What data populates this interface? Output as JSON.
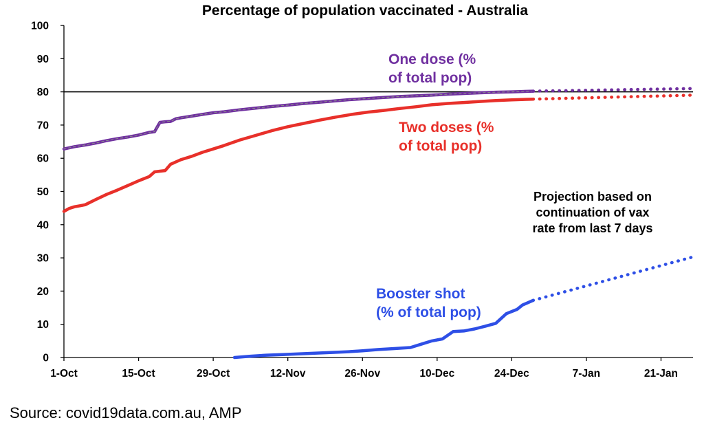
{
  "chart_data": {
    "type": "line",
    "title": "Percentage of population vaccinated - Australia",
    "x_tick_labels": [
      "1-Oct",
      "15-Oct",
      "29-Oct",
      "12-Nov",
      "26-Nov",
      "10-Dec",
      "24-Dec",
      "7-Jan",
      "21-Jan"
    ],
    "x_range_days": [
      0,
      118
    ],
    "x_note": "x values are days since 1-Oct",
    "ylim": [
      0,
      100
    ],
    "y_ticks": [
      0,
      10,
      20,
      30,
      40,
      50,
      60,
      70,
      80,
      90,
      100
    ],
    "reference_line": {
      "y": 80,
      "color": "#000000"
    },
    "grid": false,
    "series": [
      {
        "name": "One dose (% of total pop)",
        "label_lines": [
          "One dose (%",
          "of total pop)"
        ],
        "color": "#7030A0",
        "x": [
          0,
          2,
          4,
          6,
          8,
          10,
          12,
          14,
          16,
          17,
          18,
          19,
          20,
          21,
          22,
          24,
          26,
          28,
          30,
          33,
          36,
          39,
          42,
          45,
          48,
          51,
          54,
          57,
          60,
          63,
          66,
          69,
          72,
          75,
          78,
          81,
          84,
          88
        ],
        "y": [
          62.8,
          63.5,
          64.0,
          64.6,
          65.3,
          65.9,
          66.4,
          67.0,
          67.8,
          68.0,
          70.8,
          71.0,
          71.1,
          71.9,
          72.2,
          72.7,
          73.2,
          73.7,
          74.0,
          74.6,
          75.1,
          75.6,
          76.0,
          76.5,
          76.9,
          77.3,
          77.7,
          78.0,
          78.3,
          78.6,
          78.8,
          79.0,
          79.3,
          79.5,
          79.7,
          79.9,
          80.0,
          80.2
        ],
        "projection": {
          "x": [
            88,
            118
          ],
          "y": [
            80.2,
            81.0
          ]
        }
      },
      {
        "name": "Two doses (% of total pop)",
        "label_lines": [
          "Two doses (%",
          "of total pop)"
        ],
        "color": "#E8302A",
        "x": [
          0,
          1,
          2,
          3,
          4,
          6,
          8,
          10,
          12,
          14,
          16,
          17,
          18,
          19,
          20,
          21,
          22,
          24,
          26,
          28,
          30,
          33,
          36,
          39,
          42,
          45,
          48,
          51,
          54,
          57,
          60,
          63,
          66,
          69,
          72,
          75,
          78,
          81,
          84,
          88
        ],
        "y": [
          44.0,
          44.9,
          45.4,
          45.7,
          46.0,
          47.6,
          49.1,
          50.4,
          51.8,
          53.2,
          54.5,
          55.9,
          56.1,
          56.3,
          58.2,
          58.9,
          59.6,
          60.6,
          61.8,
          62.8,
          63.8,
          65.5,
          66.9,
          68.3,
          69.5,
          70.5,
          71.5,
          72.4,
          73.2,
          73.9,
          74.4,
          75.0,
          75.5,
          76.1,
          76.5,
          76.8,
          77.1,
          77.4,
          77.6,
          77.8
        ],
        "projection": {
          "x": [
            88,
            118
          ],
          "y": [
            77.8,
            79.0
          ]
        }
      },
      {
        "name": "Booster shot (% of total pop)",
        "label_lines": [
          "Booster shot",
          "(% of total pop)"
        ],
        "color": "#2E4FE6",
        "x": [
          32,
          35,
          38,
          41,
          44,
          47,
          50,
          53,
          56,
          59,
          62,
          65,
          67,
          69,
          71,
          73,
          75,
          77,
          79,
          81,
          83,
          85,
          86,
          88
        ],
        "y": [
          0.0,
          0.4,
          0.7,
          0.9,
          1.1,
          1.3,
          1.5,
          1.7,
          2.0,
          2.4,
          2.7,
          3.0,
          4.0,
          5.0,
          5.6,
          7.8,
          8.0,
          8.6,
          9.4,
          10.3,
          13.2,
          14.5,
          15.8,
          17.2
        ],
        "projection": {
          "x": [
            88,
            118
          ],
          "y": [
            17.2,
            30.3
          ]
        }
      }
    ],
    "annotation_lines": [
      "Projection based on",
      "continuation of vax",
      "rate from last 7 days"
    ],
    "source": "Source: covid19data.com.au, AMP"
  }
}
